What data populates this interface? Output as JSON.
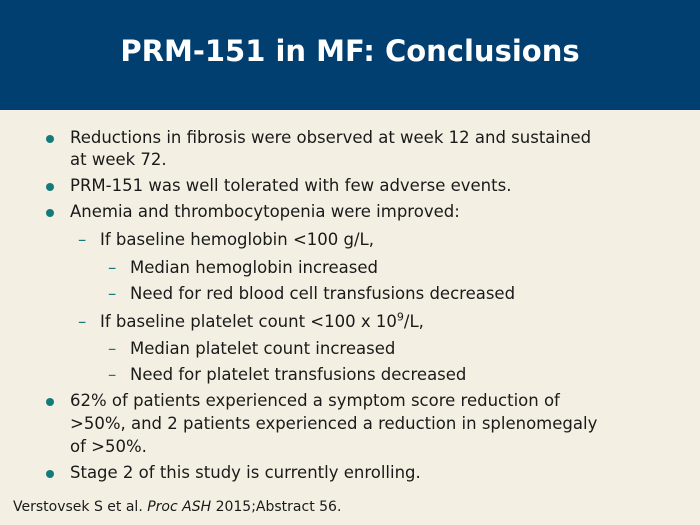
{
  "title": "PRM-151 in MF: Conclusions",
  "bullets": {
    "b1_l1": "Reductions in fibrosis were observed at week 12 and sustained",
    "b1_l2": "at week 72.",
    "b2": "PRM-151 was well tolerated with few adverse events.",
    "b3": "Anemia and thrombocytopenia were improved:",
    "s1": "If baseline hemoglobin <100 g/L,",
    "s1a": "Median hemoglobin increased",
    "s1b": "Need for red blood cell transfusions decreased",
    "s2_pre": "If baseline platelet count <100 x 10",
    "s2_sup": "9",
    "s2_post": "/L,",
    "s2a": "Median platelet count increased",
    "s2b": "Need for platelet transfusions decreased",
    "b4_l1": "62% of patients experienced a symptom score reduction of",
    "b4_l2": ">50%, and 2 patients experienced a reduction in splenomegaly",
    "b4_l3": "of >50%.",
    "b5": "Stage 2 of this study is currently enrolling.",
    "dash": "–"
  },
  "footnote": {
    "authors": "Verstovsek S et al. ",
    "journal": "Proc ASH",
    "rest": " 2015;Abstract 56."
  },
  "colors": {
    "header": "#003f6f",
    "background": "#f3efe2",
    "bullet": "#157a7a"
  }
}
